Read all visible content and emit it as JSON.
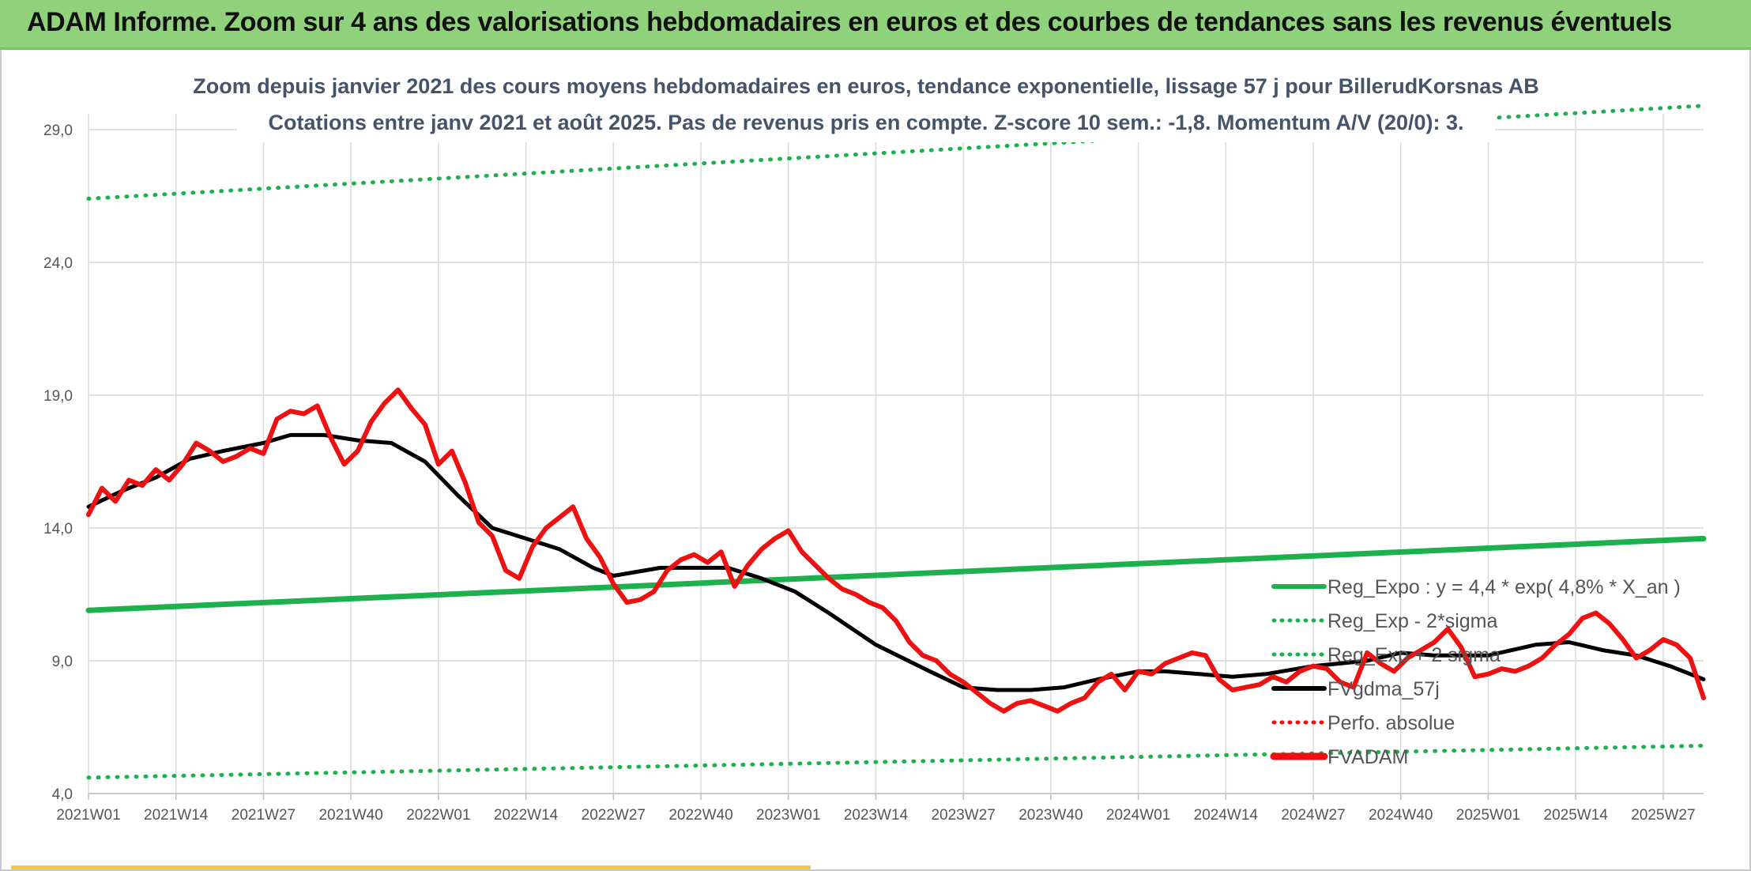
{
  "header": {
    "title": "ADAM Informe. Zoom sur 4 ans des valorisations hebdomadaires en euros et des courbes de tendances sans les revenus éventuels"
  },
  "colors": {
    "title_bar": "#8fd27b",
    "trend": "#1fb04e",
    "band": "#1fb04e",
    "price": "#ee1111",
    "avg": "#000000",
    "perfo": "#ee1111"
  },
  "chart_data": {
    "type": "line",
    "subtitle": [
      "Zoom depuis janvier 2021 des cours moyens hebdomadaires en euros, tendance exponentielle, lissage 57 j pour BillerudKorsnas AB",
      "Cotations entre janv 2021 et août 2025. Pas de revenus pris en compte. Z-score 10 sem.: -1,8. Momentum A/V (20/0): 3."
    ],
    "ylim": [
      4,
      29
    ],
    "y_ticks": [
      "4,0",
      "9,0",
      "14,0",
      "19,0",
      "24,0",
      "29,0"
    ],
    "y_tick_values": [
      4,
      9,
      14,
      19,
      24,
      29
    ],
    "x_ticks": [
      "2021W01",
      "2021W14",
      "2021W27",
      "2021W40",
      "2022W01",
      "2022W14",
      "2022W27",
      "2022W40",
      "2023W01",
      "2023W14",
      "2023W27",
      "2023W40",
      "2024W01",
      "2024W14",
      "2024W27",
      "2024W40",
      "2025W01",
      "2025W14",
      "2025W27"
    ],
    "x_tick_index": [
      0,
      13,
      26,
      39,
      52,
      65,
      78,
      91,
      104,
      117,
      130,
      143,
      156,
      169,
      182,
      195,
      208,
      221,
      234
    ],
    "n_weeks": 240,
    "grid": true,
    "legend": {
      "position": "right",
      "entries": [
        {
          "label": "Reg_Expo : y = 4,4 * exp( 4,8% *  X_an )",
          "style": "solid",
          "color": "#1fb04e"
        },
        {
          "label": "Reg_Exp - 2*sigma",
          "style": "dotted",
          "color": "#1fb04e"
        },
        {
          "label": "Reg_Exp + 2 sigma",
          "style": "dotted",
          "color": "#1fb04e"
        },
        {
          "label": "FVgdma_57j",
          "style": "solid",
          "color": "#000000"
        },
        {
          "label": "Perfo. absolue",
          "style": "dotted",
          "color": "#ee1111"
        },
        {
          "label": "FVADAM",
          "style": "solid",
          "color": "#ee1111"
        }
      ]
    },
    "series": [
      {
        "name": "Reg_Expo : y = 4,4 * exp( 4,8% *  X_an )",
        "x": [
          0,
          240
        ],
        "y": [
          10.9,
          13.6
        ]
      },
      {
        "name": "Reg_Exp - 2*sigma",
        "x": [
          0,
          240
        ],
        "y": [
          4.6,
          5.8
        ]
      },
      {
        "name": "Reg_Exp + 2 sigma",
        "x": [
          0,
          240
        ],
        "y": [
          26.4,
          29.9
        ]
      },
      {
        "name": "FVgdma_57j",
        "x": [
          0,
          5,
          10,
          15,
          20,
          26,
          30,
          35,
          40,
          45,
          50,
          55,
          60,
          65,
          70,
          75,
          78,
          85,
          90,
          95,
          100,
          105,
          110,
          117,
          125,
          130,
          135,
          140,
          145,
          150,
          156,
          160,
          165,
          170,
          175,
          182,
          190,
          195,
          200,
          208,
          215,
          220,
          225,
          230,
          235,
          240
        ],
        "y": [
          14.8,
          15.4,
          15.9,
          16.6,
          16.9,
          17.2,
          17.5,
          17.5,
          17.3,
          17.2,
          16.5,
          15.2,
          14.0,
          13.6,
          13.2,
          12.5,
          12.2,
          12.5,
          12.5,
          12.5,
          12.1,
          11.6,
          10.8,
          9.6,
          8.6,
          8.0,
          7.9,
          7.9,
          8.0,
          8.3,
          8.6,
          8.6,
          8.5,
          8.4,
          8.5,
          8.8,
          9.0,
          9.3,
          9.2,
          9.2,
          9.6,
          9.7,
          9.4,
          9.2,
          8.8,
          8.3
        ]
      },
      {
        "name": "FVADAM",
        "x": [
          0,
          2,
          4,
          6,
          8,
          10,
          12,
          14,
          16,
          18,
          20,
          22,
          24,
          26,
          28,
          30,
          32,
          34,
          36,
          38,
          40,
          42,
          44,
          46,
          48,
          50,
          52,
          54,
          56,
          58,
          60,
          62,
          64,
          66,
          68,
          70,
          72,
          74,
          76,
          78,
          80,
          82,
          84,
          86,
          88,
          90,
          92,
          94,
          96,
          98,
          100,
          102,
          104,
          106,
          108,
          110,
          112,
          114,
          116,
          118,
          120,
          122,
          124,
          126,
          128,
          130,
          132,
          134,
          136,
          138,
          140,
          142,
          144,
          146,
          148,
          150,
          152,
          154,
          156,
          158,
          160,
          162,
          164,
          166,
          168,
          170,
          172,
          174,
          176,
          178,
          180,
          182,
          184,
          186,
          188,
          190,
          192,
          194,
          196,
          198,
          200,
          202,
          204,
          206,
          208,
          210,
          212,
          214,
          216,
          218,
          220,
          222,
          224,
          226,
          228,
          230,
          232,
          234,
          236,
          238,
          240
        ],
        "y": [
          14.5,
          15.5,
          15.0,
          15.8,
          15.6,
          16.2,
          15.8,
          16.4,
          17.2,
          16.9,
          16.5,
          16.7,
          17.0,
          16.8,
          18.1,
          18.4,
          18.3,
          18.6,
          17.4,
          16.4,
          16.9,
          18.0,
          18.7,
          19.2,
          18.5,
          17.9,
          16.4,
          16.9,
          15.7,
          14.2,
          13.7,
          12.4,
          12.1,
          13.3,
          14.0,
          14.4,
          14.8,
          13.6,
          12.9,
          11.9,
          11.2,
          11.3,
          11.6,
          12.4,
          12.8,
          13.0,
          12.7,
          13.1,
          11.8,
          12.6,
          13.2,
          13.6,
          13.9,
          13.1,
          12.6,
          12.1,
          11.7,
          11.5,
          11.2,
          11.0,
          10.5,
          9.7,
          9.2,
          9.0,
          8.5,
          8.2,
          7.8,
          7.4,
          7.1,
          7.4,
          7.5,
          7.3,
          7.1,
          7.4,
          7.6,
          8.2,
          8.5,
          7.9,
          8.6,
          8.5,
          8.9,
          9.1,
          9.3,
          9.2,
          8.3,
          7.9,
          8.0,
          8.1,
          8.4,
          8.2,
          8.6,
          8.8,
          8.7,
          8.2,
          8.0,
          9.3,
          8.9,
          8.6,
          9.1,
          9.4,
          9.7,
          10.2,
          9.5,
          8.4,
          8.5,
          8.7,
          8.6,
          8.8,
          9.1,
          9.6,
          10.0,
          10.6,
          10.8,
          10.4,
          9.8,
          9.1,
          9.4,
          9.8,
          9.6,
          9.1,
          7.6
        ]
      }
    ]
  }
}
